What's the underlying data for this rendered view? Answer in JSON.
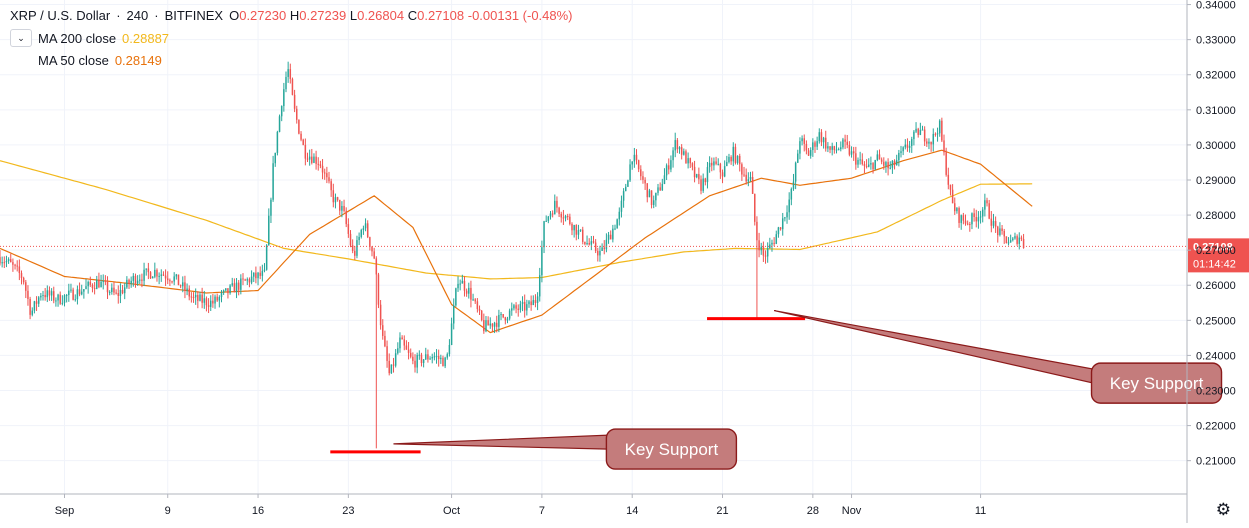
{
  "legend": {
    "symbol": "XRP / U.S. Dollar",
    "interval": "240",
    "exchange": "BITFINEX",
    "open": "0.27230",
    "high": "0.27239",
    "low": "0.26804",
    "close": "0.27108",
    "change": "-0.00131 (-0.48%)",
    "ma200_label": "MA 200 close",
    "ma200_value": "0.28887",
    "ma50_label": "MA 50 close",
    "ma50_value": "0.28149"
  },
  "price_badge": {
    "price": "0.27108",
    "countdown": "01:14:42"
  },
  "annotations": [
    {
      "label": "Key Support",
      "level": 0.2125
    },
    {
      "label": "Key Support",
      "level": 0.2505
    }
  ],
  "colors": {
    "up": "#26a69a",
    "down": "#ef5350",
    "ma200": "#f2b81c",
    "ma50": "#e8720c",
    "support": "#ff0000",
    "callout_fill": "#c47c7c",
    "callout_border": "#8b1a1a"
  },
  "chart_data": {
    "type": "candlestick",
    "title": "XRP / U.S. Dollar · 240 · BITFINEX",
    "ylim": [
      0.2005,
      0.3413
    ],
    "y_ticks": [
      "0.34000",
      "0.33000",
      "0.32000",
      "0.31000",
      "0.30000",
      "0.29000",
      "0.28000",
      "0.27000",
      "0.26000",
      "0.25000",
      "0.24000",
      "0.23000",
      "0.22000",
      "0.21000"
    ],
    "x_ticks": [
      "Sep",
      "9",
      "16",
      "23",
      "Oct",
      "7",
      "14",
      "21",
      "28",
      "Nov",
      "11"
    ],
    "x_tick_days": [
      1,
      9,
      16,
      23,
      31,
      38,
      45,
      52,
      59,
      62,
      72
    ],
    "x_range_days": [
      -4,
      88
    ],
    "grid": true,
    "legend_position": "top-left",
    "price_path": {
      "start_day": -4,
      "candles_per_day": 6,
      "anchors": [
        [
          -4,
          0.268
        ],
        [
          -3.2,
          0.266
        ],
        [
          -2.2,
          0.262
        ],
        [
          -1.6,
          0.252
        ],
        [
          -0.8,
          0.258
        ],
        [
          0.5,
          0.256
        ],
        [
          2,
          0.258
        ],
        [
          3.6,
          0.261
        ],
        [
          5,
          0.257
        ],
        [
          6.4,
          0.262
        ],
        [
          8,
          0.264
        ],
        [
          9.5,
          0.262
        ],
        [
          11,
          0.256
        ],
        [
          12.5,
          0.255
        ],
        [
          14,
          0.259
        ],
        [
          15.5,
          0.262
        ],
        [
          16.5,
          0.263
        ],
        [
          17.2,
          0.295
        ],
        [
          17.8,
          0.312
        ],
        [
          18.3,
          0.322
        ],
        [
          18.8,
          0.31
        ],
        [
          19.6,
          0.298
        ],
        [
          20.8,
          0.295
        ],
        [
          21.8,
          0.285
        ],
        [
          22.6,
          0.281
        ],
        [
          23.4,
          0.268
        ],
        [
          24.2,
          0.278
        ],
        [
          25,
          0.268
        ],
        [
          25.6,
          0.246
        ],
        [
          26.2,
          0.234
        ],
        [
          27,
          0.244
        ],
        [
          28,
          0.238
        ],
        [
          29.5,
          0.24
        ],
        [
          30.6,
          0.238
        ],
        [
          31.5,
          0.262
        ],
        [
          32.4,
          0.258
        ],
        [
          33.5,
          0.248
        ],
        [
          34.6,
          0.25
        ],
        [
          35.8,
          0.253
        ],
        [
          37,
          0.254
        ],
        [
          37.6,
          0.256
        ],
        [
          38.2,
          0.278
        ],
        [
          39,
          0.283
        ],
        [
          40.2,
          0.278
        ],
        [
          41.5,
          0.272
        ],
        [
          42.6,
          0.269
        ],
        [
          44,
          0.28
        ],
        [
          45,
          0.297
        ],
        [
          45.8,
          0.29
        ],
        [
          46.6,
          0.283
        ],
        [
          47.6,
          0.292
        ],
        [
          48.4,
          0.301
        ],
        [
          49.3,
          0.295
        ],
        [
          50.3,
          0.288
        ],
        [
          51.2,
          0.295
        ],
        [
          52,
          0.292
        ],
        [
          52.8,
          0.298
        ],
        [
          53.6,
          0.292
        ],
        [
          54.2,
          0.29
        ],
        [
          54.6,
          0.274
        ],
        [
          55.2,
          0.268
        ],
        [
          56,
          0.273
        ],
        [
          56.8,
          0.28
        ],
        [
          57.4,
          0.287
        ],
        [
          58,
          0.302
        ],
        [
          58.6,
          0.297
        ],
        [
          59.5,
          0.303
        ],
        [
          60.4,
          0.298
        ],
        [
          61.4,
          0.3
        ],
        [
          62.3,
          0.296
        ],
        [
          63.2,
          0.293
        ],
        [
          64,
          0.296
        ],
        [
          65,
          0.293
        ],
        [
          66,
          0.298
        ],
        [
          67.2,
          0.304
        ],
        [
          68.2,
          0.301
        ],
        [
          68.8,
          0.306
        ],
        [
          69.2,
          0.296
        ],
        [
          69.8,
          0.283
        ],
        [
          70.4,
          0.279
        ],
        [
          71,
          0.278
        ],
        [
          71.8,
          0.28
        ],
        [
          72.4,
          0.283
        ],
        [
          73,
          0.277
        ],
        [
          73.6,
          0.274
        ],
        [
          74.4,
          0.272
        ],
        [
          75,
          0.274
        ],
        [
          75.4,
          0.271
        ]
      ]
    },
    "key_lows": [
      {
        "day": 25.1,
        "low": 0.2135
      },
      {
        "day": 54.6,
        "low": 0.2505
      }
    ],
    "ma200_anchors": [
      [
        -4,
        0.2955
      ],
      [
        4,
        0.2875
      ],
      [
        12,
        0.2785
      ],
      [
        18,
        0.2705
      ],
      [
        23,
        0.2675
      ],
      [
        29,
        0.2635
      ],
      [
        34,
        0.2618
      ],
      [
        38,
        0.2622
      ],
      [
        44,
        0.2665
      ],
      [
        49,
        0.2695
      ],
      [
        53,
        0.2705
      ],
      [
        58,
        0.2702
      ],
      [
        64,
        0.2752
      ],
      [
        69,
        0.2842
      ],
      [
        72,
        0.2888
      ],
      [
        76,
        0.2889
      ]
    ],
    "ma50_anchors": [
      [
        -4,
        0.2705
      ],
      [
        1,
        0.2625
      ],
      [
        6,
        0.2605
      ],
      [
        12,
        0.2578
      ],
      [
        16,
        0.2585
      ],
      [
        20,
        0.2745
      ],
      [
        25,
        0.2855
      ],
      [
        28,
        0.2765
      ],
      [
        31,
        0.2545
      ],
      [
        34,
        0.2465
      ],
      [
        38,
        0.2515
      ],
      [
        42,
        0.2625
      ],
      [
        46,
        0.2735
      ],
      [
        51,
        0.2855
      ],
      [
        55,
        0.2905
      ],
      [
        58,
        0.2885
      ],
      [
        62,
        0.2905
      ],
      [
        66,
        0.2955
      ],
      [
        69,
        0.2985
      ],
      [
        72,
        0.2945
      ],
      [
        76,
        0.2825
      ]
    ]
  }
}
